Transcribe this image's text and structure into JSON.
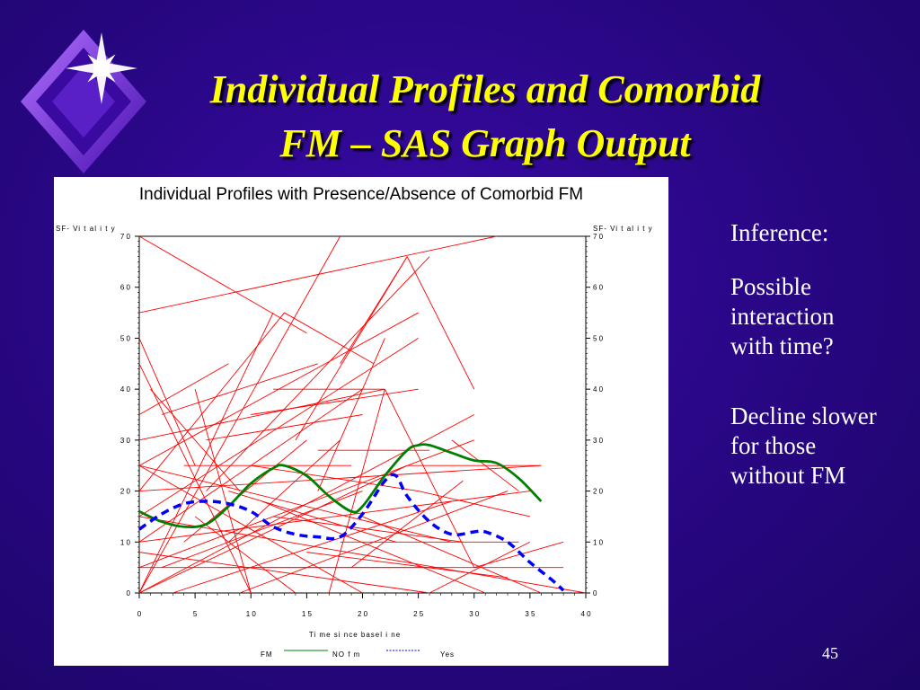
{
  "slide": {
    "title_line1": "Individual Profiles and Comorbid",
    "title_line2": "FM – SAS Graph Output",
    "inference_heading": "Inference:",
    "point1": "Possible interaction with time?",
    "point2": "Decline slower for those without FM",
    "page_number": "45",
    "colors": {
      "background": "#2a0788",
      "title": "#ffff00",
      "text": "#ffffff"
    }
  },
  "chart_data": {
    "type": "line",
    "title": "Individual Profiles with Presence/Absence of Comorbid FM",
    "ylabel_left": "SF- Vi t al i t y",
    "ylabel_right": "SF- Vi t al i t y",
    "xlabel": "Ti me  si nce  basel i ne",
    "xlim": [
      0,
      40
    ],
    "ylim": [
      0,
      70
    ],
    "x_ticks": [
      "0",
      "5",
      "1 0",
      "1 5",
      "2 0",
      "2 5",
      "3 0",
      "3 5",
      "4 0"
    ],
    "y_ticks": [
      "0",
      "1 0",
      "2 0",
      "3 0",
      "4 0",
      "5 0",
      "6 0",
      "7 0"
    ],
    "legend": {
      "label": "FM",
      "items": [
        "NO  f m",
        "Yes"
      ],
      "placement": "bottom"
    },
    "series": [
      {
        "name": "NO  f m",
        "style": "solid",
        "color": "#008000",
        "x": [
          0,
          2,
          4,
          6,
          8,
          10,
          12,
          13,
          15,
          17,
          19,
          20,
          22,
          24,
          25,
          26,
          28,
          30,
          32,
          34,
          36
        ],
        "y": [
          16,
          14,
          13,
          13.5,
          17,
          21.5,
          24.5,
          25,
          23,
          19,
          16,
          17,
          23,
          28,
          29,
          29,
          27.5,
          26,
          25.5,
          22.5,
          18
        ]
      },
      {
        "name": "Yes",
        "style": "dashed",
        "color": "#0000ff",
        "x": [
          0,
          2,
          4,
          6,
          8,
          10,
          12,
          14,
          16,
          18,
          20,
          22,
          23,
          24,
          26,
          28,
          30,
          31,
          33,
          35,
          37,
          38
        ],
        "y": [
          12.5,
          15.5,
          17.5,
          18,
          17.5,
          16,
          13,
          11.5,
          11,
          11,
          15.5,
          22,
          23,
          19,
          14,
          11.5,
          12,
          12,
          10,
          6,
          2.5,
          0.5
        ]
      }
    ],
    "individual_profiles": {
      "color": "#ff0000",
      "segments": [
        [
          [
            0,
            70
          ],
          [
            15,
            51
          ]
        ],
        [
          [
            0,
            55
          ],
          [
            32,
            70
          ]
        ],
        [
          [
            0,
            25
          ],
          [
            25,
            55
          ]
        ],
        [
          [
            0,
            0
          ],
          [
            12,
            55
          ]
        ],
        [
          [
            0,
            50
          ],
          [
            5,
            25
          ]
        ],
        [
          [
            0,
            35
          ],
          [
            8,
            45
          ]
        ],
        [
          [
            0,
            45
          ],
          [
            10,
            0
          ]
        ],
        [
          [
            0,
            20
          ],
          [
            36,
            25
          ]
        ],
        [
          [
            0,
            15
          ],
          [
            40,
            0
          ]
        ],
        [
          [
            0,
            10
          ],
          [
            35,
            20
          ]
        ],
        [
          [
            0,
            5
          ],
          [
            30,
            30
          ]
        ],
        [
          [
            0,
            0
          ],
          [
            24,
            25
          ]
        ],
        [
          [
            0,
            25
          ],
          [
            20,
            0
          ]
        ],
        [
          [
            0,
            30
          ],
          [
            22,
            40
          ]
        ],
        [
          [
            0,
            20
          ],
          [
            13,
            55
          ]
        ],
        [
          [
            0,
            10
          ],
          [
            20,
            40
          ]
        ],
        [
          [
            0,
            0
          ],
          [
            30,
            35
          ]
        ],
        [
          [
            0,
            25
          ],
          [
            28,
            10
          ]
        ],
        [
          [
            0,
            15
          ],
          [
            25,
            50
          ]
        ],
        [
          [
            0,
            5
          ],
          [
            38,
            5
          ]
        ],
        [
          [
            0,
            0
          ],
          [
            18,
            70
          ]
        ],
        [
          [
            2,
            35
          ],
          [
            16,
            45
          ]
        ],
        [
          [
            4,
            25
          ],
          [
            19,
            25
          ]
        ],
        [
          [
            5,
            40
          ],
          [
            10,
            0
          ]
        ],
        [
          [
            6,
            30
          ],
          [
            20,
            35
          ]
        ],
        [
          [
            6,
            20
          ],
          [
            26,
            66
          ]
        ],
        [
          [
            8,
            10
          ],
          [
            18,
            30
          ]
        ],
        [
          [
            10,
            25
          ],
          [
            25,
            20
          ]
        ],
        [
          [
            10,
            35
          ],
          [
            25,
            40
          ]
        ],
        [
          [
            12,
            15
          ],
          [
            29,
            10
          ]
        ],
        [
          [
            12,
            40
          ],
          [
            22,
            40
          ]
        ],
        [
          [
            13,
            55
          ],
          [
            21,
            45
          ]
        ],
        [
          [
            14,
            30
          ],
          [
            24,
            66
          ]
        ],
        [
          [
            16,
            20
          ],
          [
            22,
            50
          ]
        ],
        [
          [
            17,
            0
          ],
          [
            22,
            40
          ]
        ],
        [
          [
            18,
            10
          ],
          [
            34,
            10
          ]
        ],
        [
          [
            18,
            45
          ],
          [
            24,
            66
          ]
        ],
        [
          [
            20,
            15
          ],
          [
            36,
            0
          ]
        ],
        [
          [
            22,
            40
          ],
          [
            30,
            5
          ]
        ],
        [
          [
            24,
            66
          ],
          [
            30,
            40
          ]
        ],
        [
          [
            24,
            25
          ],
          [
            36,
            25
          ]
        ],
        [
          [
            25,
            20
          ],
          [
            35,
            15
          ]
        ],
        [
          [
            26,
            0
          ],
          [
            35,
            10
          ]
        ],
        [
          [
            28,
            30
          ],
          [
            34,
            20
          ]
        ],
        [
          [
            30,
            5
          ],
          [
            38,
            10
          ]
        ],
        [
          [
            2,
            5
          ],
          [
            20,
            20
          ]
        ],
        [
          [
            4,
            10
          ],
          [
            15,
            30
          ]
        ],
        [
          [
            3,
            0
          ],
          [
            28,
            18
          ]
        ],
        [
          [
            7,
            5
          ],
          [
            27,
            5
          ]
        ],
        [
          [
            9,
            0
          ],
          [
            33,
            20
          ]
        ],
        [
          [
            11,
            18
          ],
          [
            31,
            0
          ]
        ],
        [
          [
            15,
            8
          ],
          [
            33,
            3
          ]
        ],
        [
          [
            5,
            15
          ],
          [
            14,
            0
          ]
        ],
        [
          [
            0,
            8
          ],
          [
            26,
            0
          ]
        ],
        [
          [
            8,
            20
          ],
          [
            23,
            10
          ]
        ],
        [
          [
            16,
            28
          ],
          [
            26,
            28
          ]
        ],
        [
          [
            19,
            5
          ],
          [
            29,
            22
          ]
        ],
        [
          [
            1,
            40
          ],
          [
            9,
            20
          ]
        ]
      ]
    }
  }
}
